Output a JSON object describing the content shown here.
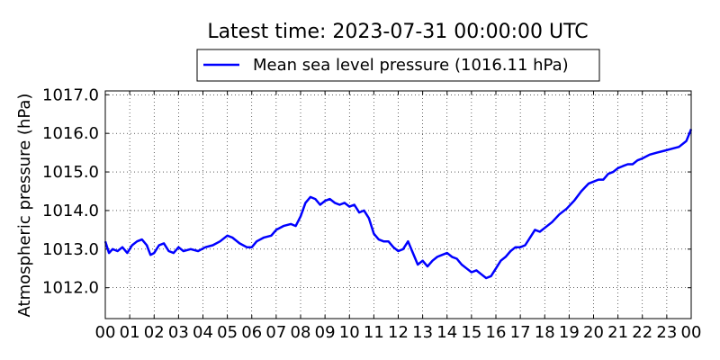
{
  "chart_data": {
    "type": "line",
    "title": "Latest time: 2023-07-31 00:00:00 UTC",
    "ylabel": "Atmospheric pressure (hPa)",
    "xlabel": "",
    "xlim": [
      0,
      24
    ],
    "ylim": [
      1011.2,
      1017.1
    ],
    "x_ticks": [
      "00",
      "01",
      "02",
      "03",
      "04",
      "05",
      "06",
      "07",
      "08",
      "09",
      "10",
      "11",
      "12",
      "13",
      "14",
      "15",
      "16",
      "17",
      "18",
      "19",
      "20",
      "21",
      "22",
      "23",
      "00"
    ],
    "y_ticks": [
      "1012.0",
      "1013.0",
      "1014.0",
      "1015.0",
      "1016.0",
      "1017.0"
    ],
    "y_tick_values": [
      1012.0,
      1013.0,
      1014.0,
      1015.0,
      1016.0,
      1017.0
    ],
    "grid": true,
    "legend_position": "top-center",
    "series": [
      {
        "name": "Mean sea level pressure (1016.11 hPa)",
        "color": "#0000ff",
        "x": [
          0.0,
          0.15,
          0.3,
          0.5,
          0.7,
          0.9,
          1.1,
          1.3,
          1.5,
          1.7,
          1.85,
          2.0,
          2.2,
          2.4,
          2.6,
          2.8,
          3.0,
          3.2,
          3.5,
          3.8,
          4.1,
          4.4,
          4.7,
          5.0,
          5.2,
          5.5,
          5.8,
          6.0,
          6.2,
          6.5,
          6.8,
          7.0,
          7.3,
          7.6,
          7.8,
          8.0,
          8.2,
          8.4,
          8.6,
          8.8,
          9.0,
          9.2,
          9.4,
          9.6,
          9.8,
          10.0,
          10.2,
          10.4,
          10.6,
          10.8,
          11.0,
          11.2,
          11.4,
          11.6,
          11.8,
          12.0,
          12.2,
          12.4,
          12.6,
          12.8,
          13.0,
          13.2,
          13.4,
          13.6,
          13.8,
          14.0,
          14.2,
          14.4,
          14.6,
          14.8,
          15.0,
          15.2,
          15.4,
          15.6,
          15.8,
          16.0,
          16.2,
          16.4,
          16.6,
          16.8,
          17.0,
          17.2,
          17.4,
          17.6,
          17.8,
          18.0,
          18.3,
          18.6,
          18.9,
          19.2,
          19.5,
          19.8,
          20.0,
          20.2,
          20.4,
          20.6,
          20.8,
          21.0,
          21.2,
          21.4,
          21.6,
          21.8,
          22.0,
          22.3,
          22.6,
          22.9,
          23.2,
          23.5,
          23.8,
          24.0
        ],
        "y": [
          1013.2,
          1012.9,
          1013.0,
          1012.95,
          1013.05,
          1012.9,
          1013.1,
          1013.2,
          1013.25,
          1013.1,
          1012.85,
          1012.9,
          1013.1,
          1013.15,
          1012.95,
          1012.9,
          1013.05,
          1012.95,
          1013.0,
          1012.95,
          1013.05,
          1013.1,
          1013.2,
          1013.35,
          1013.3,
          1013.15,
          1013.05,
          1013.05,
          1013.2,
          1013.3,
          1013.35,
          1013.5,
          1013.6,
          1013.65,
          1013.6,
          1013.85,
          1014.2,
          1014.35,
          1014.3,
          1014.15,
          1014.25,
          1014.3,
          1014.2,
          1014.15,
          1014.2,
          1014.1,
          1014.15,
          1013.95,
          1014.0,
          1013.8,
          1013.4,
          1013.25,
          1013.2,
          1013.2,
          1013.05,
          1012.95,
          1013.0,
          1013.2,
          1012.9,
          1012.6,
          1012.7,
          1012.55,
          1012.7,
          1012.8,
          1012.85,
          1012.9,
          1012.8,
          1012.75,
          1012.6,
          1012.5,
          1012.4,
          1012.45,
          1012.35,
          1012.25,
          1012.3,
          1012.5,
          1012.7,
          1012.8,
          1012.95,
          1013.05,
          1013.05,
          1013.1,
          1013.3,
          1013.5,
          1013.45,
          1013.55,
          1013.7,
          1013.9,
          1014.05,
          1014.25,
          1014.5,
          1014.7,
          1014.75,
          1014.8,
          1014.8,
          1014.95,
          1015.0,
          1015.1,
          1015.15,
          1015.2,
          1015.2,
          1015.3,
          1015.35,
          1015.45,
          1015.5,
          1015.55,
          1015.6,
          1015.65,
          1015.8,
          1016.11
        ]
      }
    ]
  }
}
